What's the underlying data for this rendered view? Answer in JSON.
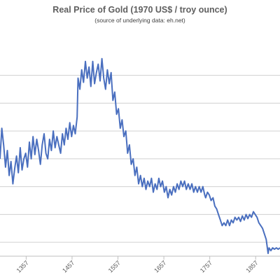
{
  "chart_data": {
    "type": "line",
    "title": "Real Price of Gold (1970 US$ / troy ounce)",
    "subtitle": "(source of underlying data: eh.net)",
    "xlabel": "",
    "ylabel": "",
    "xlim": [
      1300,
      1910
    ],
    "ylim": [
      0,
      160
    ],
    "gridlines_y": [
      10,
      30,
      50,
      70,
      90,
      110,
      130
    ],
    "x_tick_labels": [
      "1357",
      "1457",
      "1557",
      "1657",
      "1757",
      "1857"
    ],
    "grid": "horizontal",
    "legend": "none",
    "series": [
      {
        "color": "#4a6fbf",
        "points": [
          [
            1300,
            70
          ],
          [
            1304,
            92
          ],
          [
            1308,
            80
          ],
          [
            1312,
            64
          ],
          [
            1316,
            76
          ],
          [
            1320,
            58
          ],
          [
            1324,
            68
          ],
          [
            1328,
            52
          ],
          [
            1332,
            63
          ],
          [
            1336,
            72
          ],
          [
            1340,
            60
          ],
          [
            1344,
            78
          ],
          [
            1348,
            62
          ],
          [
            1352,
            70
          ],
          [
            1356,
            74
          ],
          [
            1360,
            64
          ],
          [
            1364,
            82
          ],
          [
            1368,
            70
          ],
          [
            1372,
            86
          ],
          [
            1376,
            73
          ],
          [
            1380,
            84
          ],
          [
            1384,
            76
          ],
          [
            1388,
            66
          ],
          [
            1392,
            80
          ],
          [
            1396,
            88
          ],
          [
            1400,
            74
          ],
          [
            1404,
            70
          ],
          [
            1408,
            84
          ],
          [
            1412,
            76
          ],
          [
            1416,
            90
          ],
          [
            1420,
            78
          ],
          [
            1424,
            86
          ],
          [
            1428,
            80
          ],
          [
            1432,
            74
          ],
          [
            1436,
            88
          ],
          [
            1440,
            80
          ],
          [
            1444,
            92
          ],
          [
            1448,
            84
          ],
          [
            1452,
            96
          ],
          [
            1456,
            86
          ],
          [
            1460,
            94
          ],
          [
            1464,
            88
          ],
          [
            1468,
            100
          ],
          [
            1470,
            128
          ],
          [
            1474,
            120
          ],
          [
            1478,
            134
          ],
          [
            1482,
            125
          ],
          [
            1486,
            140
          ],
          [
            1490,
            128
          ],
          [
            1494,
            136
          ],
          [
            1498,
            122
          ],
          [
            1502,
            140
          ],
          [
            1506,
            124
          ],
          [
            1510,
            132
          ],
          [
            1514,
            138
          ],
          [
            1518,
            126
          ],
          [
            1522,
            142
          ],
          [
            1526,
            128
          ],
          [
            1530,
            120
          ],
          [
            1534,
            134
          ],
          [
            1538,
            124
          ],
          [
            1542,
            132
          ],
          [
            1546,
            112
          ],
          [
            1550,
            118
          ],
          [
            1554,
            102
          ],
          [
            1558,
            106
          ],
          [
            1562,
            92
          ],
          [
            1566,
            98
          ],
          [
            1570,
            86
          ],
          [
            1574,
            90
          ],
          [
            1578,
            74
          ],
          [
            1582,
            80
          ],
          [
            1586,
            66
          ],
          [
            1590,
            70
          ],
          [
            1594,
            58
          ],
          [
            1598,
            64
          ],
          [
            1602,
            52
          ],
          [
            1606,
            58
          ],
          [
            1610,
            50
          ],
          [
            1614,
            56
          ],
          [
            1618,
            48
          ],
          [
            1622,
            54
          ],
          [
            1626,
            50
          ],
          [
            1630,
            56
          ],
          [
            1634,
            46
          ],
          [
            1638,
            52
          ],
          [
            1642,
            48
          ],
          [
            1646,
            56
          ],
          [
            1650,
            50
          ],
          [
            1654,
            54
          ],
          [
            1658,
            46
          ],
          [
            1662,
            50
          ],
          [
            1666,
            42
          ],
          [
            1670,
            48
          ],
          [
            1674,
            44
          ],
          [
            1678,
            50
          ],
          [
            1682,
            46
          ],
          [
            1686,
            52
          ],
          [
            1690,
            48
          ],
          [
            1694,
            54
          ],
          [
            1698,
            50
          ],
          [
            1702,
            54
          ],
          [
            1706,
            48
          ],
          [
            1710,
            52
          ],
          [
            1714,
            48
          ],
          [
            1718,
            52
          ],
          [
            1722,
            46
          ],
          [
            1726,
            50
          ],
          [
            1730,
            46
          ],
          [
            1734,
            50
          ],
          [
            1738,
            46
          ],
          [
            1742,
            50
          ],
          [
            1746,
            44
          ],
          [
            1748,
            42
          ],
          [
            1752,
            46
          ],
          [
            1756,
            44
          ],
          [
            1760,
            40
          ],
          [
            1764,
            42
          ],
          [
            1768,
            36
          ],
          [
            1772,
            34
          ],
          [
            1776,
            30
          ],
          [
            1780,
            26
          ],
          [
            1784,
            22
          ],
          [
            1788,
            24
          ],
          [
            1792,
            22
          ],
          [
            1796,
            26
          ],
          [
            1800,
            22
          ],
          [
            1804,
            26
          ],
          [
            1808,
            24
          ],
          [
            1812,
            28
          ],
          [
            1816,
            26
          ],
          [
            1820,
            28
          ],
          [
            1824,
            25
          ],
          [
            1828,
            29
          ],
          [
            1832,
            26
          ],
          [
            1836,
            30
          ],
          [
            1840,
            27
          ],
          [
            1844,
            30
          ],
          [
            1848,
            28
          ],
          [
            1852,
            32
          ],
          [
            1856,
            30
          ],
          [
            1860,
            28
          ],
          [
            1864,
            24
          ],
          [
            1868,
            22
          ],
          [
            1872,
            20
          ],
          [
            1876,
            16
          ],
          [
            1880,
            12
          ],
          [
            1884,
            2
          ],
          [
            1886,
            6
          ],
          [
            1890,
            4
          ],
          [
            1894,
            6
          ],
          [
            1898,
            5
          ],
          [
            1902,
            6
          ],
          [
            1906,
            5
          ],
          [
            1910,
            6
          ]
        ]
      }
    ]
  }
}
